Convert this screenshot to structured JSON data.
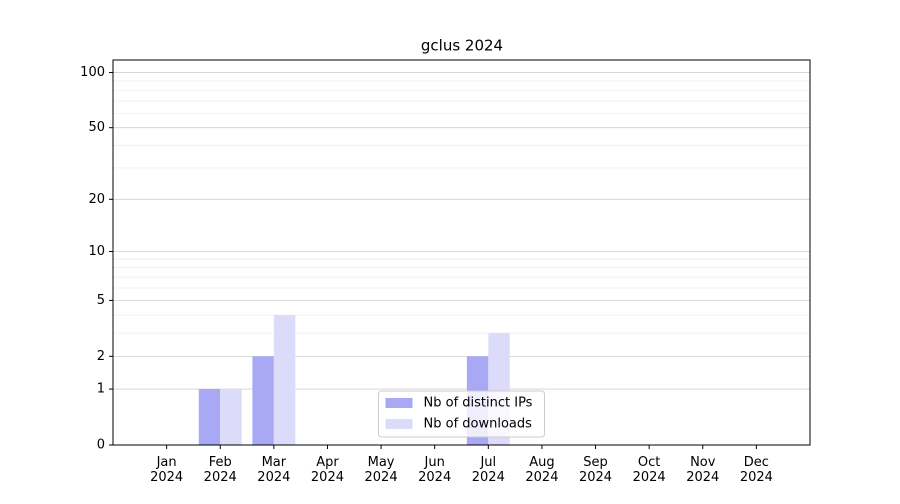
{
  "chart_data": {
    "type": "bar",
    "title": "gclus 2024",
    "categories": [
      "Jan 2024",
      "Feb 2024",
      "Mar 2024",
      "Apr 2024",
      "May 2024",
      "Jun 2024",
      "Jul 2024",
      "Aug 2024",
      "Sep 2024",
      "Oct 2024",
      "Nov 2024",
      "Dec 2024"
    ],
    "series": [
      {
        "name": "Nb of distinct IPs",
        "color": "#a8a8f5",
        "values": [
          0,
          1,
          2,
          0,
          0,
          0,
          2,
          0,
          0,
          0,
          0,
          0
        ]
      },
      {
        "name": "Nb of downloads",
        "color": "#dcdcfa",
        "values": [
          0,
          1,
          4,
          0,
          0,
          0,
          3,
          0,
          0,
          0,
          0,
          0
        ]
      }
    ],
    "yscale": "log1p",
    "ylim": [
      0,
      117
    ],
    "yticks": [
      0,
      1,
      2,
      5,
      10,
      20,
      50,
      100
    ],
    "minor_yticks": [
      3,
      4,
      6,
      7,
      8,
      9,
      30,
      40,
      60,
      70,
      80,
      90
    ],
    "grid": true,
    "legend": "lower center"
  }
}
